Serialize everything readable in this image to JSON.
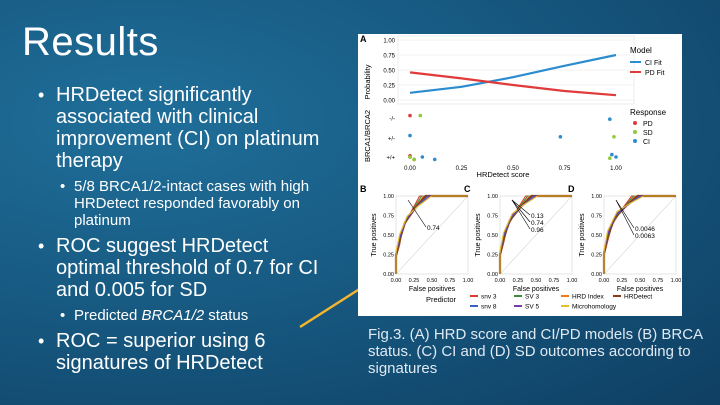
{
  "slide": {
    "title": "Results",
    "bullets": {
      "b1": "HRDetect significantly associated with clinical improvement (CI) on platinum therapy",
      "b1_sub": "5/8 BRCA1/2-intact cases with high HRDetect responded favorably on platinum",
      "b2": "ROC suggest HRDetect optimal threshold of 0.7 for CI and 0.005 for SD",
      "b2_sub_prefix": "Predicted ",
      "b2_sub_italic": "BRCA1/2",
      "b2_sub_suffix": " status",
      "b3": "ROC = superior using 6 signatures of HRDetect"
    },
    "caption": "Fig.3. (A) HRD score and CI/PD models (B) BRCA status. (C) CI and (D) SD outcomes according to signatures",
    "arrow_color": "#f5b52e"
  },
  "figure": {
    "panelA": {
      "label": "A",
      "ylabel_top": "Probability",
      "yticks": [
        "1.00",
        "0.75",
        "0.50",
        "0.25",
        "0.00"
      ],
      "ylabel_bottom": "BRCA1/BRCA2",
      "cat_labels": [
        "-/-",
        "+/-",
        "+/+"
      ],
      "xticks": [
        "0.00",
        "0.25",
        "0.50",
        "0.75",
        "1.00"
      ],
      "xlabel": "HRDetect score",
      "legend_model_title": "Model",
      "legend_model": [
        "CI Fit",
        "PD Fit"
      ],
      "legend_response_title": "Response",
      "legend_response": [
        "PD",
        "SD",
        "CI"
      ]
    },
    "panelB": {
      "label": "B",
      "annotation": "0.74"
    },
    "panelC": {
      "label": "C",
      "annotations": [
        "0.13",
        "0.74",
        "0.96"
      ]
    },
    "panelD": {
      "label": "D",
      "annotations": [
        "0.0046",
        "0.0063"
      ]
    },
    "roc_ylabel": "True positives",
    "roc_xlabel": "False positives",
    "roc_yticks": [
      "1.00",
      "0.75",
      "0.50",
      "0.25",
      "0.00"
    ],
    "roc_xticks": [
      "0.00",
      "0.25",
      "0.50",
      "0.75",
      "1.00"
    ],
    "predictor_title": "Predictor",
    "predictors": [
      "snv 3",
      "SV 3",
      "HRD Index",
      "HRDetect",
      "snv 8",
      "SV 5",
      "Microhomology"
    ],
    "colors": {
      "ci": "#2b8ccf",
      "pd": "#e03a3a",
      "sd": "#8ecb3a"
    }
  },
  "chart_data": [
    {
      "type": "line",
      "title": "",
      "xlabel": "HRDetect score",
      "ylabel": "Probability",
      "xlim": [
        0,
        1
      ],
      "ylim": [
        0,
        1
      ],
      "series": [
        {
          "name": "CI Fit",
          "x": [
            0,
            0.25,
            0.5,
            0.75,
            1.0
          ],
          "values": [
            0.12,
            0.22,
            0.38,
            0.57,
            0.75
          ]
        },
        {
          "name": "PD Fit",
          "x": [
            0,
            0.25,
            0.5,
            0.75,
            1.0
          ],
          "values": [
            0.46,
            0.36,
            0.25,
            0.15,
            0.08
          ]
        }
      ]
    },
    {
      "type": "scatter",
      "xlabel": "HRDetect score",
      "ylabel": "BRCA1/BRCA2",
      "categories": [
        "-/-",
        "+/-",
        "+/+"
      ],
      "series": [
        {
          "name": "PD",
          "points": [
            [
              0.0,
              "-/-"
            ],
            [
              0.0,
              "+/+"
            ],
            [
              0.02,
              "+/+"
            ],
            [
              0.0,
              "+/+"
            ]
          ]
        },
        {
          "name": "SD",
          "points": [
            [
              0.05,
              "-/-"
            ],
            [
              0.0,
              "+/+"
            ],
            [
              0.02,
              "+/+"
            ],
            [
              0.99,
              "+/-"
            ],
            [
              0.97,
              "+/+"
            ]
          ]
        },
        {
          "name": "CI",
          "points": [
            [
              0.0,
              "+/-"
            ],
            [
              0.06,
              "+/+"
            ],
            [
              0.12,
              "+/+"
            ],
            [
              0.73,
              "+/-"
            ],
            [
              0.97,
              "-/-"
            ],
            [
              0.98,
              "+/+"
            ],
            [
              1.0,
              "+/+"
            ]
          ]
        }
      ]
    }
  ]
}
